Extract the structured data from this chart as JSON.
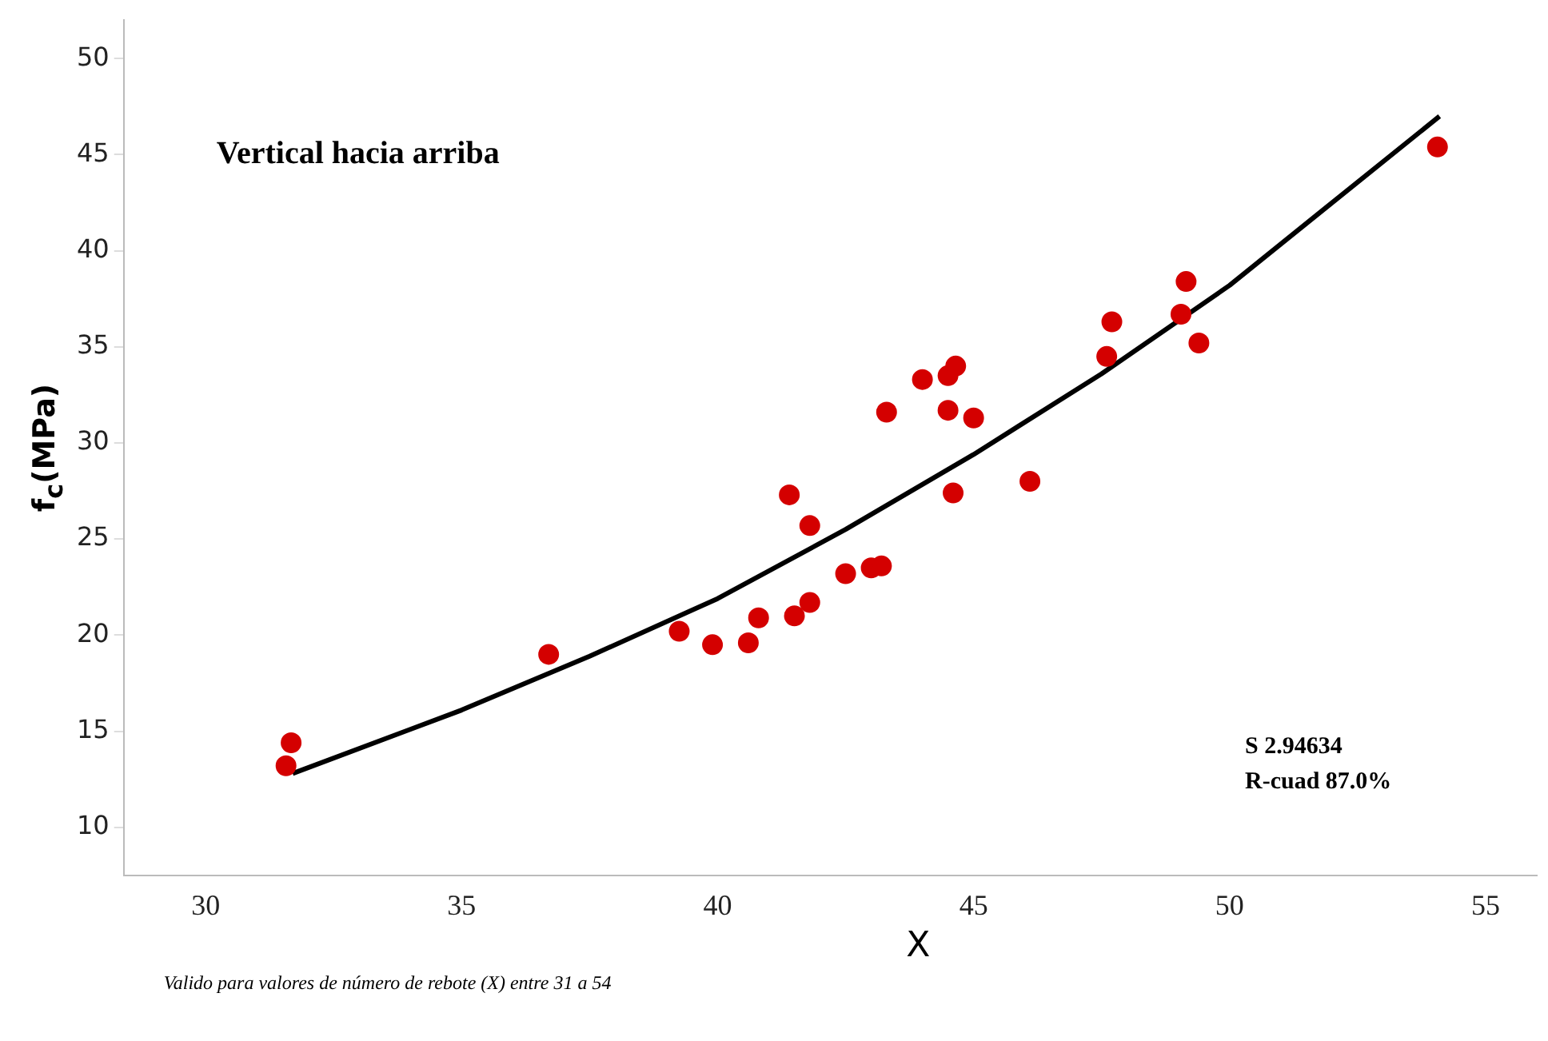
{
  "chart_data": {
    "type": "scatter",
    "title": "Vertical hacia arriba",
    "xlabel": "X",
    "ylabel": "f$_{c}$(MPa)",
    "annotations": [
      "S 2.94634",
      "R-cuad 87.0%",
      "Valido para valores de número de rebote (X) entre 31 a 54"
    ],
    "xlim": [
      28.4,
      56
    ],
    "ylim": [
      7.5,
      52
    ],
    "xticks": [
      30,
      35,
      40,
      45,
      50,
      55
    ],
    "yticks": [
      10,
      15,
      20,
      25,
      30,
      35,
      40,
      45,
      50
    ],
    "series": [
      {
        "marker": "circle",
        "color": "#d40000",
        "x": [
          31.57,
          31.67,
          36.7,
          39.25,
          39.9,
          40.6,
          40.8,
          41.5,
          41.8,
          41.4,
          41.8,
          42.5,
          43.0,
          43.2,
          43.3,
          44.0,
          44.5,
          44.65,
          44.5,
          45.0,
          44.6,
          46.1,
          47.6,
          47.7,
          49.05,
          49.15,
          49.4,
          54.06
        ],
        "values": [
          13.2,
          14.4,
          19.0,
          20.2,
          19.5,
          19.6,
          20.9,
          21.0,
          21.7,
          27.3,
          25.7,
          23.2,
          23.5,
          23.6,
          31.6,
          33.3,
          33.5,
          34.0,
          31.7,
          31.3,
          27.4,
          28.0,
          34.5,
          36.3,
          36.7,
          38.4,
          35.2,
          45.4
        ]
      },
      {
        "type": "line",
        "marker": "none",
        "color": "#000000",
        "x": [
          31.7,
          35,
          37.5,
          40,
          42.5,
          45,
          47.5,
          50,
          52,
          54.1
        ],
        "values": [
          12.8,
          16.1,
          18.9,
          21.9,
          25.5,
          29.4,
          33.6,
          38.2,
          42.5,
          47.0
        ]
      }
    ]
  }
}
